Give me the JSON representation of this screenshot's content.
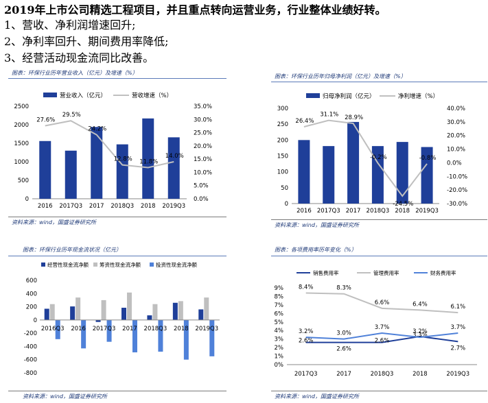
{
  "header": {
    "line0": "2019年上市公司精选工程项目，并且重点转向运营业务，行业整体业绩好转。",
    "line1": "1、营收、净利润增速回升;",
    "line2": "2、净利率回升、期间费用率降低;",
    "line3": "3、经营活动现金流同比改善。"
  },
  "captions": {
    "c1": "图表：环保行业历年营业收入（亿元）及增速（%）",
    "c2": "图表：环保行业历年归母净利润（亿元）及增速（%）",
    "c3": "图表：环保行业历年现金流状况（亿元）",
    "c4": "图表：各项费用率历年变化（%）"
  },
  "sources": {
    "s1": "资料来源：wind，国盛证券研究所",
    "s2": "资料来源：wind，国盛证券研究所",
    "s3": "资料来源：wind，国盛证券研究所",
    "s4": "资料来源：wind，国盛证券研究所"
  },
  "colors": {
    "navy": "#1f3f99",
    "grey": "#bfbfbf",
    "blue": "#4f81d9",
    "caption": "#1f3a78"
  },
  "chart_data": [
    {
      "type": "bar",
      "categories": [
        "2016",
        "2017Q3",
        "2017",
        "2018Q3",
        "2018",
        "2019Q3"
      ],
      "series": [
        {
          "name": "营业收入（亿元）",
          "type": "bar",
          "values": [
            1560,
            1300,
            1940,
            1470,
            2170,
            1660
          ]
        },
        {
          "name": "营收增速（%）",
          "type": "line",
          "axis": "right",
          "values": [
            27.6,
            29.5,
            24.2,
            12.8,
            11.8,
            14.0
          ],
          "labels": [
            "27.6%",
            "29.5%",
            "24.2%",
            "12.8%",
            "11.8%",
            "14.0%"
          ]
        }
      ],
      "ylim": [
        0,
        2500
      ],
      "yticks": [
        "0",
        "500",
        "1000",
        "1500",
        "2000",
        "2500"
      ],
      "y2lim": [
        0,
        35
      ],
      "y2ticks": [
        "0.0%",
        "5.0%",
        "10.0%",
        "15.0%",
        "20.0%",
        "25.0%",
        "30.0%",
        "35.0%"
      ],
      "legend": "top",
      "grid": false
    },
    {
      "type": "bar",
      "categories": [
        "2016",
        "2017Q3",
        "2017",
        "2018Q3",
        "2018",
        "2019Q3"
      ],
      "series": [
        {
          "name": "归母净利润（亿元）",
          "type": "bar",
          "values": [
            200,
            181,
            257,
            181,
            194,
            178
          ]
        },
        {
          "name": "净利增速（%）",
          "type": "line",
          "axis": "right",
          "values": [
            26.4,
            31.1,
            28.9,
            -0.2,
            -24.5,
            -0.8
          ],
          "labels": [
            "26.4%",
            "31.1%",
            "28.9%",
            "-0.2%",
            "-24.5%",
            "-0.8%"
          ]
        }
      ],
      "ylim": [
        0,
        300
      ],
      "yticks": [
        "0",
        "50",
        "100",
        "150",
        "200",
        "250",
        "300"
      ],
      "y2lim": [
        -30,
        40
      ],
      "y2ticks": [
        "-30.0%",
        "-20.0%",
        "-10.0%",
        "0.0%",
        "10.0%",
        "20.0%",
        "30.0%",
        "40.0%"
      ],
      "legend": "top",
      "grid": false
    },
    {
      "type": "bar",
      "categories": [
        "2016Q3",
        "2016",
        "2017Q3",
        "2017",
        "2018Q3",
        "2018",
        "2019Q3"
      ],
      "series": [
        {
          "name": "经营性现金流净额",
          "values": [
            170,
            205,
            -30,
            185,
            70,
            260,
            160
          ]
        },
        {
          "name": "筹资性现金流净额",
          "values": [
            240,
            340,
            300,
            415,
            240,
            285,
            340
          ]
        },
        {
          "name": "投资性现金流净额",
          "values": [
            -290,
            -430,
            -330,
            -490,
            -480,
            -600,
            -550
          ]
        }
      ],
      "ylim": [
        -800,
        600
      ],
      "yticks": [
        "-800",
        "-600",
        "-400",
        "-200",
        "0",
        "200",
        "400",
        "600"
      ],
      "legend": "top",
      "grid": false
    },
    {
      "type": "line",
      "categories": [
        "2017Q3",
        "2017",
        "2018Q3",
        "2018",
        "2019Q3"
      ],
      "series": [
        {
          "name": "销售费用率",
          "values": [
            2.6,
            2.6,
            2.6,
            3.3,
            2.7
          ],
          "labels": [
            "2.6%",
            "2.6%",
            "2.6%",
            "3.3%",
            "2.7%"
          ]
        },
        {
          "name": "管理费用率",
          "values": [
            8.4,
            8.3,
            6.6,
            6.4,
            6.1
          ],
          "labels": [
            "8.4%",
            "8.3%",
            "6.6%",
            "6.4%",
            "6.1%"
          ]
        },
        {
          "name": "财务费用率",
          "values": [
            3.2,
            3.0,
            3.7,
            3.2,
            3.7
          ],
          "labels": [
            "3.2%",
            "3.0%",
            "3.7%",
            "3.2%",
            "3.7%"
          ]
        }
      ],
      "ylim": [
        0,
        9
      ],
      "yticks": [
        "0%",
        "1%",
        "2%",
        "3%",
        "4%",
        "5%",
        "6%",
        "7%",
        "8%",
        "9%"
      ],
      "legend": "top",
      "grid": false
    }
  ]
}
